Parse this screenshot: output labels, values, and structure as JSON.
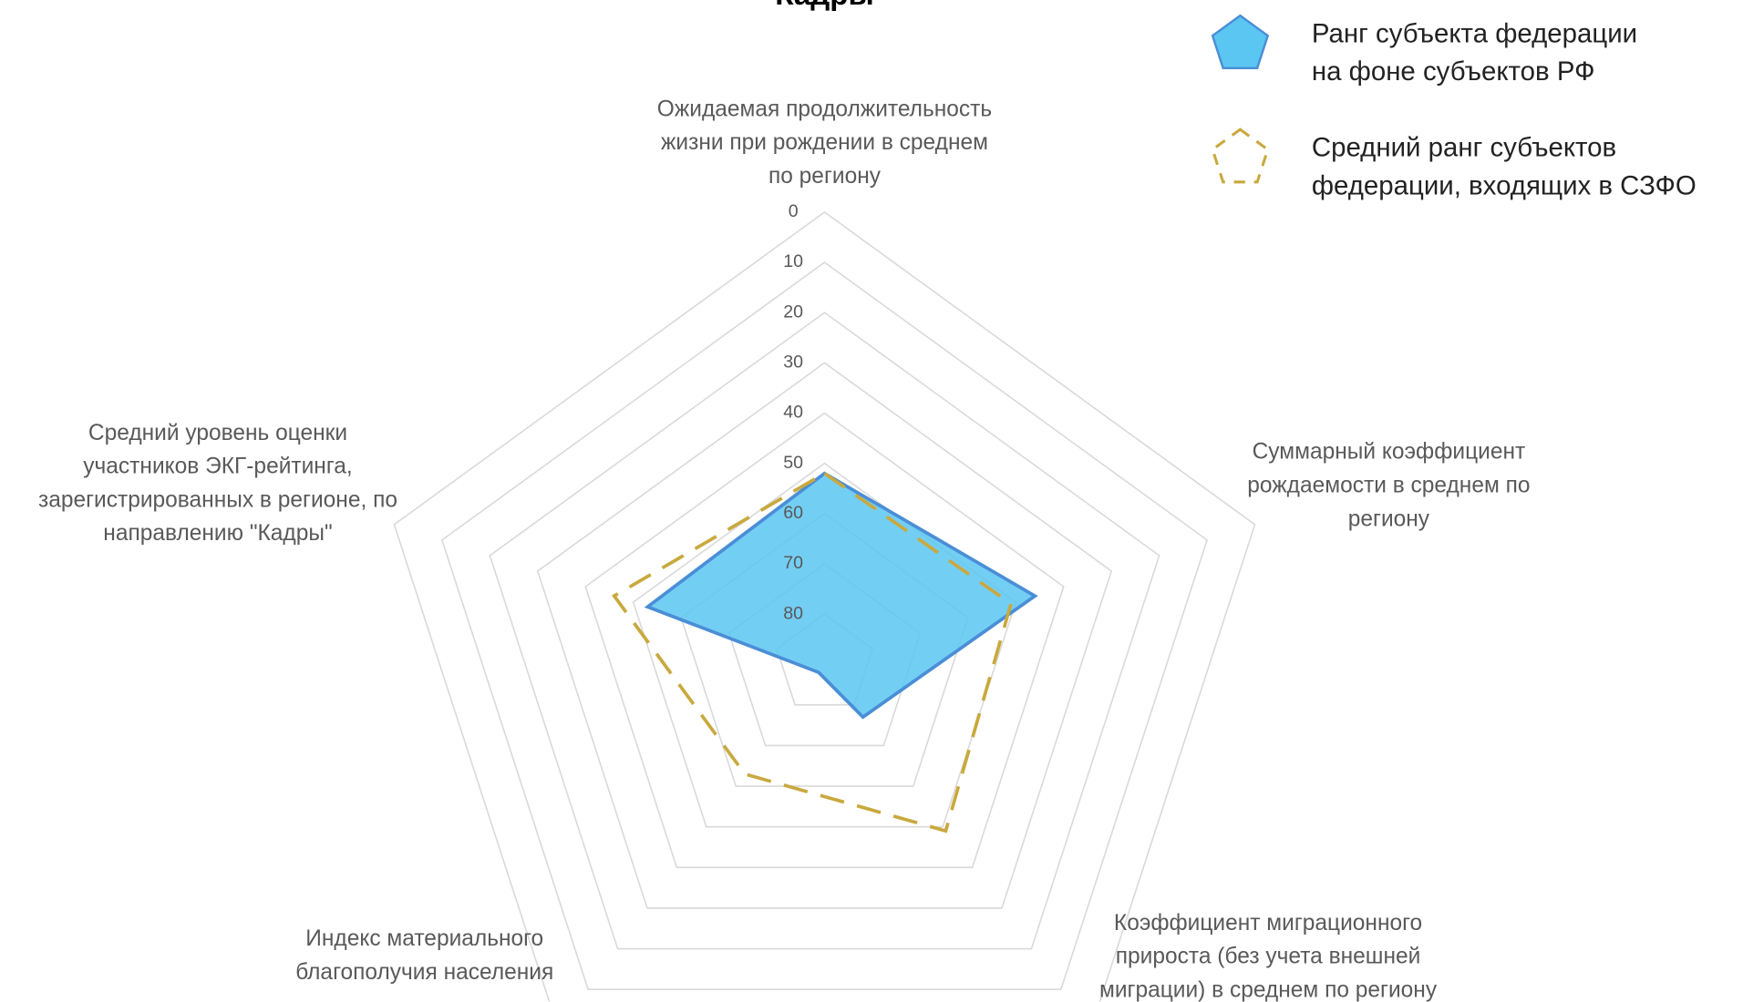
{
  "chart_data": {
    "type": "radar",
    "title": "Кадры",
    "categories": [
      "Ожидаемая продолжительность\nжизни при рождении в среднем\nпо региону",
      "Суммарный  коэффициент\nрождаемости в среднем по\nрегиону",
      "Коэффициент миграционного\nприроста (без учета внешней\nмиграции) в среднем по региону",
      "Индекс материального\nблагополучия населения",
      "Средний уровень оценки\nучастников ЭКГ-рейтинга,\nзарегистрированных в регионе, по\nнаправлению \"Кадры\""
    ],
    "series": [
      {
        "name": "Ранг субъекта федерации\nна фоне субъектов РФ",
        "color": "#5bc6f2",
        "values": [
          52,
          46,
          77,
          88,
          53
        ]
      },
      {
        "name": "Средний ранг субъектов\nфедерации, входящих в СЗФО",
        "color": "#c9a93e",
        "values": [
          52,
          51,
          49,
          63,
          46
        ]
      }
    ],
    "ylim": [
      0,
      90
    ],
    "yticks": [
      0,
      10,
      20,
      30,
      40,
      50,
      60,
      70,
      80
    ],
    "reversed": true,
    "grid": true
  }
}
